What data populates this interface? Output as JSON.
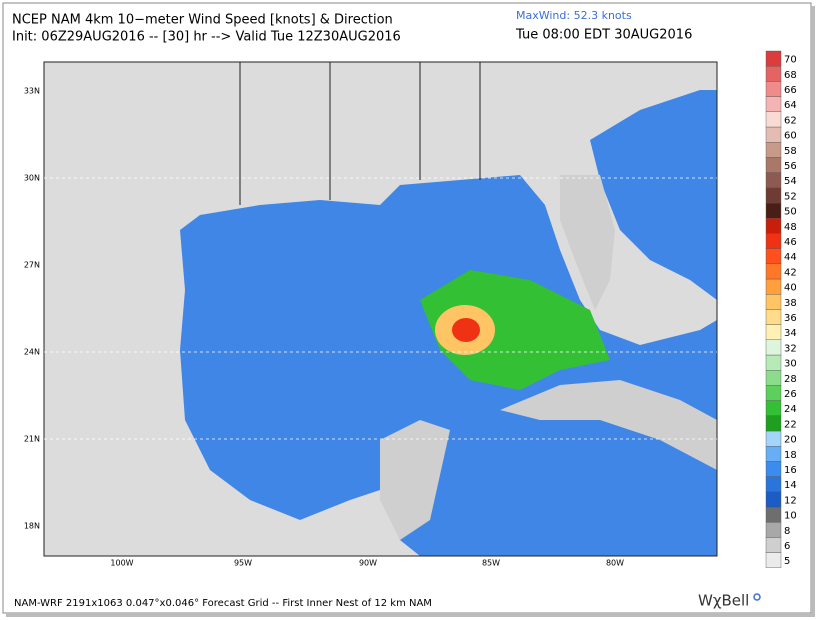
{
  "header": {
    "title": "NCEP NAM 4km 10−meter Wind Speed [knots] & Direction",
    "init": "Init: 06Z29AUG2016 -- [30] hr --> Valid Tue 12Z30AUG2016",
    "maxwind": "MaxWind:  52.3 knots",
    "local_time": "Tue 08:00 EDT 30AUG2016"
  },
  "map": {
    "lat_labels": [
      "33N",
      "30N",
      "27N",
      "24N",
      "21N",
      "18N"
    ],
    "lon_labels": [
      "100W",
      "95W",
      "90W",
      "85W",
      "80W"
    ]
  },
  "colorbar": {
    "levels": [
      5,
      6,
      8,
      10,
      12,
      14,
      16,
      18,
      20,
      22,
      24,
      26,
      28,
      30,
      32,
      34,
      36,
      38,
      40,
      42,
      44,
      46,
      48,
      50,
      52,
      54,
      56,
      58,
      60,
      62,
      64,
      66,
      68,
      70
    ],
    "colors": [
      "#ebebeb",
      "#cfcfcf",
      "#a8a8a8",
      "#6e6e6e",
      "#1c5cc4",
      "#2a74dc",
      "#3c8cf0",
      "#68aef5",
      "#a4d4fa",
      "#1ea01e",
      "#34c034",
      "#5cd05c",
      "#8cdc8c",
      "#b6eab6",
      "#dcf5dc",
      "#fff0b4",
      "#ffdc8c",
      "#ffc464",
      "#ffa03c",
      "#ff7828",
      "#ff501e",
      "#f03214",
      "#c81e0a",
      "#4a1e14",
      "#6e3c32",
      "#8c5a50",
      "#aa7868",
      "#c89a8a",
      "#e4bcb2",
      "#f8dcd4",
      "#f4b4b4",
      "#ee8c8c",
      "#e46464",
      "#dc3c3c",
      "#d21e1e"
    ]
  },
  "footer": {
    "grid": "NAM-WRF 2191x1063 0.047°x0.046° Forecast Grid -- First Inner Nest of 12 km NAM",
    "logo": "WχBell"
  }
}
